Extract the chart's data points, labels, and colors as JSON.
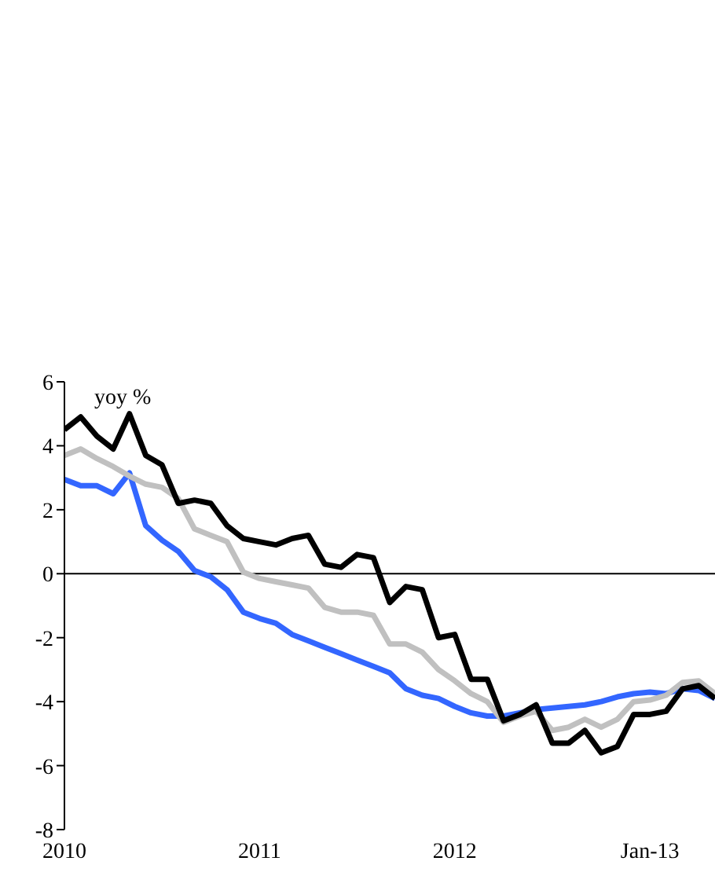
{
  "chart_data": {
    "type": "line",
    "annotations": [
      "yoy %"
    ],
    "x": [
      "2010-01",
      "2010-02",
      "2010-03",
      "2010-04",
      "2010-05",
      "2010-06",
      "2010-07",
      "2010-08",
      "2010-09",
      "2010-10",
      "2010-11",
      "2010-12",
      "2011-01",
      "2011-02",
      "2011-03",
      "2011-04",
      "2011-05",
      "2011-06",
      "2011-07",
      "2011-08",
      "2011-09",
      "2011-10",
      "2011-11",
      "2011-12",
      "2012-01",
      "2012-02",
      "2012-03",
      "2012-04",
      "2012-05",
      "2012-06",
      "2012-07",
      "2012-08",
      "2012-09",
      "2012-10",
      "2012-11",
      "2012-12",
      "2013-01",
      "2013-02",
      "2013-03",
      "2013-04",
      "2013-05"
    ],
    "series": [
      {
        "color": "#3366ff",
        "values": [
          2.95,
          2.75,
          2.75,
          2.5,
          3.15,
          1.5,
          1.05,
          0.7,
          0.1,
          -0.1,
          -0.5,
          -1.2,
          -1.4,
          -1.55,
          -1.9,
          -2.1,
          -2.3,
          -2.5,
          -2.7,
          -2.9,
          -3.1,
          -3.6,
          -3.8,
          -3.9,
          -4.15,
          -4.35,
          -4.45,
          -4.45,
          -4.35,
          -4.25,
          -4.2,
          -4.15,
          -4.1,
          -4.0,
          -3.85,
          -3.75,
          -3.7,
          -3.75,
          -3.6,
          -3.65,
          -3.9
        ]
      },
      {
        "color": "#c0c0c0",
        "values": [
          3.7,
          3.9,
          3.6,
          3.35,
          3.05,
          2.8,
          2.7,
          2.35,
          1.4,
          1.2,
          1.0,
          0.05,
          -0.15,
          -0.25,
          -0.35,
          -0.45,
          -1.05,
          -1.2,
          -1.2,
          -1.3,
          -2.2,
          -2.2,
          -2.45,
          -3.0,
          -3.35,
          -3.75,
          -4.0,
          -4.65,
          -4.45,
          -4.3,
          -4.9,
          -4.8,
          -4.55,
          -4.8,
          -4.55,
          -4.0,
          -3.95,
          -3.8,
          -3.4,
          -3.35,
          -3.75
        ]
      },
      {
        "color": "#000000",
        "values": [
          4.5,
          4.9,
          4.3,
          3.9,
          5.0,
          3.7,
          3.4,
          2.2,
          2.3,
          2.2,
          1.5,
          1.1,
          1.0,
          0.9,
          1.1,
          1.2,
          0.3,
          0.2,
          0.6,
          0.5,
          -0.9,
          -0.4,
          -0.5,
          -2.0,
          -1.9,
          -3.3,
          -3.3,
          -4.6,
          -4.4,
          -4.1,
          -5.3,
          -5.3,
          -4.9,
          -5.6,
          -5.4,
          -4.4,
          -4.4,
          -4.3,
          -3.6,
          -3.5,
          -3.9
        ]
      }
    ],
    "xlim": [
      "2010-01",
      "2013-05"
    ],
    "xticks": [
      {
        "value": "2010-01",
        "label": "2010"
      },
      {
        "value": "2011-01",
        "label": "2011"
      },
      {
        "value": "2012-01",
        "label": "2012"
      },
      {
        "value": "2013-01",
        "label": "Jan-13"
      }
    ],
    "ylim": [
      -8,
      6
    ],
    "yticks": [
      -8,
      -6,
      -4,
      -2,
      0,
      2,
      4,
      6
    ],
    "ref_lines": [
      {
        "axis": "y",
        "value": 0,
        "color": "#000000"
      }
    ],
    "grid": false,
    "legend": false,
    "marker": "none",
    "line_style": "solid"
  }
}
